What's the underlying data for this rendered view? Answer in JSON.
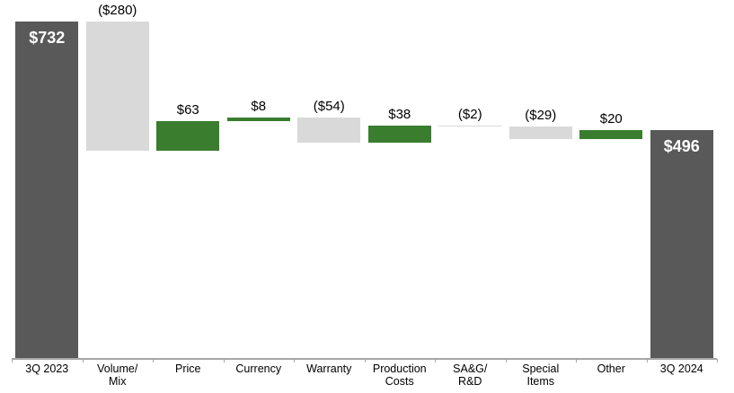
{
  "chart_data": {
    "type": "bar",
    "subtype": "waterfall",
    "title": "",
    "categories": [
      "3Q 2023",
      "Volume/\nMix",
      "Price",
      "Currency",
      "Warranty",
      "Production\nCosts",
      "SA&G/\nR&D",
      "Special\nItems",
      "Other",
      "3Q 2024"
    ],
    "values": [
      732,
      -280,
      63,
      8,
      -54,
      38,
      -2,
      -29,
      20,
      496
    ],
    "labels": [
      "$732",
      "($280)",
      "$63",
      "$8",
      "($54)",
      "$38",
      "($2)",
      "($29)",
      "$20",
      "$496"
    ],
    "bar_roles": [
      "total",
      "decrease",
      "increase",
      "increase",
      "decrease",
      "increase",
      "decrease",
      "decrease",
      "increase",
      "total"
    ],
    "running_totals": [
      732,
      452,
      515,
      523,
      469,
      507,
      505,
      476,
      496,
      496
    ],
    "colors": {
      "total": "#595959",
      "increase": "#3a7d2f",
      "decrease": "#d9d9d9",
      "axis": "#a6a6a6",
      "label_inside": "#ffffff",
      "label_outside": "#000000"
    },
    "ylim": [
      0,
      780
    ],
    "grid": false,
    "legend": false,
    "value_label_position": "outside-top for deltas, inside-top for totals"
  }
}
